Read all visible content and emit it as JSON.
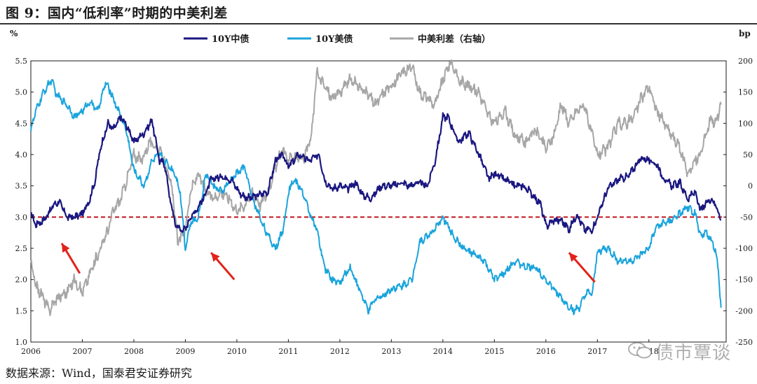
{
  "figure": {
    "title": "图 9：国内“低利率”时期的中美利差",
    "source": "数据来源：Wind，国泰君安证券研究",
    "watermark": "债市覃谈"
  },
  "chart_data": {
    "type": "line",
    "title": "",
    "left_axis": {
      "unit": "%",
      "ylim": [
        1.0,
        5.5
      ],
      "ticks": [
        "1.0",
        "1.5",
        "2.0",
        "2.5",
        "3.0",
        "3.5",
        "4.0",
        "4.5",
        "5.0",
        "5.5"
      ]
    },
    "right_axis": {
      "unit": "bp",
      "ylim": [
        -250,
        200
      ],
      "ticks": [
        "-250",
        "-200",
        "-150",
        "-100",
        "-50",
        "0",
        "50",
        "100",
        "150",
        "200"
      ]
    },
    "x_axis": {
      "xlim": [
        2006,
        2019.5
      ],
      "ticks": [
        "2006",
        "2007",
        "2008",
        "2009",
        "2010",
        "2011",
        "2012",
        "2013",
        "2014",
        "2015",
        "2016",
        "2017",
        "2018"
      ]
    },
    "grid": false,
    "legend_placement": "top-center",
    "reference_line": {
      "value": 3.0,
      "axis": "left",
      "color": "#c0141b",
      "style": "dashed"
    },
    "arrows": [
      {
        "from": [
          2006.95,
          2.1
        ],
        "to": [
          2006.6,
          2.58
        ],
        "color": "#e2231a"
      },
      {
        "from": [
          2009.95,
          2.0
        ],
        "to": [
          2009.5,
          2.43
        ],
        "color": "#e2231a"
      },
      {
        "from": [
          2016.95,
          1.96
        ],
        "to": [
          2016.45,
          2.43
        ],
        "color": "#e2231a"
      }
    ],
    "series": [
      {
        "name": "10Y中债",
        "axis": "left",
        "color": "#1a1780",
        "x": [
          2006.0,
          2006.1,
          2006.25,
          2006.45,
          2006.55,
          2006.7,
          2006.85,
          2007.0,
          2007.15,
          2007.25,
          2007.35,
          2007.5,
          2007.6,
          2007.75,
          2007.9,
          2008.0,
          2008.2,
          2008.35,
          2008.5,
          2008.6,
          2008.7,
          2008.8,
          2008.9,
          2009.0,
          2009.1,
          2009.2,
          2009.35,
          2009.5,
          2009.7,
          2009.9,
          2010.0,
          2010.1,
          2010.25,
          2010.4,
          2010.6,
          2010.75,
          2010.9,
          2011.0,
          2011.2,
          2011.4,
          2011.6,
          2011.7,
          2011.85,
          2012.0,
          2012.15,
          2012.3,
          2012.45,
          2012.6,
          2012.8,
          2013.0,
          2013.2,
          2013.35,
          2013.5,
          2013.7,
          2013.85,
          2014.0,
          2014.1,
          2014.3,
          2014.5,
          2014.7,
          2014.9,
          2015.0,
          2015.2,
          2015.4,
          2015.55,
          2015.7,
          2015.9,
          2016.0,
          2016.15,
          2016.3,
          2016.45,
          2016.6,
          2016.75,
          2016.9,
          2017.0,
          2017.2,
          2017.4,
          2017.6,
          2017.8,
          2017.9,
          2018.0,
          2018.15,
          2018.3,
          2018.45,
          2018.6,
          2018.75,
          2018.9,
          2019.0,
          2019.1,
          2019.2,
          2019.3,
          2019.4
        ],
        "values": [
          3.05,
          2.88,
          2.95,
          3.2,
          3.25,
          3.0,
          3.0,
          3.05,
          3.3,
          3.6,
          4.1,
          4.5,
          4.4,
          4.6,
          4.4,
          4.2,
          4.35,
          4.55,
          3.9,
          3.85,
          3.3,
          2.9,
          2.8,
          2.8,
          3.0,
          3.1,
          3.3,
          3.6,
          3.65,
          3.6,
          3.45,
          3.35,
          3.3,
          3.35,
          3.4,
          3.9,
          4.0,
          3.8,
          4.0,
          3.9,
          4.0,
          3.6,
          3.45,
          3.5,
          3.45,
          3.55,
          3.35,
          3.3,
          3.5,
          3.5,
          3.55,
          3.5,
          3.55,
          3.5,
          3.9,
          4.6,
          4.6,
          4.2,
          4.35,
          4.0,
          3.6,
          3.7,
          3.6,
          3.5,
          3.5,
          3.4,
          3.2,
          2.85,
          2.95,
          2.95,
          2.8,
          3.05,
          2.8,
          2.8,
          3.0,
          3.45,
          3.6,
          3.65,
          3.9,
          3.95,
          3.9,
          3.85,
          3.6,
          3.5,
          3.55,
          3.3,
          3.4,
          3.1,
          3.2,
          3.3,
          3.2,
          2.95
        ]
      },
      {
        "name": "10Y美债",
        "axis": "left",
        "color": "#1aa4dc",
        "x": [
          2006.0,
          2006.1,
          2006.25,
          2006.4,
          2006.5,
          2006.7,
          2006.85,
          2007.0,
          2007.15,
          2007.3,
          2007.45,
          2007.55,
          2007.7,
          2007.85,
          2008.0,
          2008.2,
          2008.35,
          2008.5,
          2008.65,
          2008.8,
          2008.9,
          2009.0,
          2009.1,
          2009.25,
          2009.4,
          2009.55,
          2009.7,
          2009.9,
          2010.0,
          2010.15,
          2010.3,
          2010.45,
          2010.6,
          2010.75,
          2010.9,
          2011.0,
          2011.1,
          2011.25,
          2011.4,
          2011.55,
          2011.7,
          2011.85,
          2012.0,
          2012.2,
          2012.4,
          2012.55,
          2012.7,
          2012.85,
          2013.0,
          2013.2,
          2013.4,
          2013.55,
          2013.7,
          2013.85,
          2014.0,
          2014.2,
          2014.4,
          2014.6,
          2014.8,
          2015.0,
          2015.2,
          2015.4,
          2015.6,
          2015.8,
          2016.0,
          2016.2,
          2016.4,
          2016.55,
          2016.65,
          2016.8,
          2016.9,
          2017.0,
          2017.2,
          2017.4,
          2017.55,
          2017.7,
          2017.85,
          2018.0,
          2018.15,
          2018.3,
          2018.45,
          2018.6,
          2018.75,
          2018.9,
          2019.0,
          2019.1,
          2019.2,
          2019.3,
          2019.35,
          2019.4
        ],
        "values": [
          4.4,
          4.7,
          5.0,
          5.2,
          4.95,
          4.8,
          4.6,
          4.7,
          4.85,
          4.7,
          5.15,
          5.0,
          4.7,
          4.4,
          3.75,
          3.5,
          3.9,
          4.0,
          3.85,
          3.7,
          3.4,
          2.5,
          2.9,
          3.0,
          3.7,
          3.5,
          3.4,
          3.6,
          3.7,
          3.8,
          3.3,
          3.0,
          2.7,
          2.5,
          2.8,
          3.4,
          3.6,
          3.45,
          3.1,
          2.8,
          2.2,
          2.0,
          1.95,
          2.2,
          1.8,
          1.5,
          1.7,
          1.75,
          1.85,
          1.9,
          2.0,
          2.6,
          2.7,
          2.8,
          3.0,
          2.7,
          2.5,
          2.4,
          2.3,
          2.0,
          2.1,
          2.3,
          2.2,
          2.2,
          2.0,
          1.8,
          1.6,
          1.5,
          1.55,
          1.8,
          1.75,
          2.45,
          2.5,
          2.3,
          2.3,
          2.3,
          2.4,
          2.5,
          2.85,
          2.9,
          2.95,
          3.05,
          3.15,
          3.05,
          2.7,
          2.75,
          2.65,
          2.45,
          2.1,
          1.55
        ]
      },
      {
        "name": "中美利差（右轴）",
        "axis": "right",
        "color": "#a6a6a6",
        "x": [
          2006.0,
          2006.1,
          2006.25,
          2006.35,
          2006.5,
          2006.7,
          2006.85,
          2007.0,
          2007.15,
          2007.35,
          2007.5,
          2007.6,
          2007.75,
          2007.9,
          2008.0,
          2008.15,
          2008.3,
          2008.45,
          2008.6,
          2008.75,
          2008.85,
          2009.0,
          2009.1,
          2009.25,
          2009.4,
          2009.55,
          2009.7,
          2009.85,
          2010.0,
          2010.15,
          2010.3,
          2010.45,
          2010.6,
          2010.75,
          2010.9,
          2011.0,
          2011.15,
          2011.3,
          2011.45,
          2011.55,
          2011.7,
          2011.85,
          2012.0,
          2012.2,
          2012.35,
          2012.5,
          2012.7,
          2012.85,
          2013.0,
          2013.2,
          2013.4,
          2013.55,
          2013.7,
          2013.85,
          2014.0,
          2014.15,
          2014.3,
          2014.5,
          2014.7,
          2014.9,
          2015.0,
          2015.2,
          2015.4,
          2015.6,
          2015.8,
          2016.0,
          2016.15,
          2016.3,
          2016.45,
          2016.6,
          2016.75,
          2016.9,
          2017.0,
          2017.2,
          2017.4,
          2017.55,
          2017.7,
          2017.85,
          2018.0,
          2018.15,
          2018.3,
          2018.45,
          2018.6,
          2018.75,
          2018.9,
          2019.0,
          2019.1,
          2019.2,
          2019.3,
          2019.4
        ],
        "values": [
          -125,
          -160,
          -180,
          -200,
          -180,
          -170,
          -150,
          -170,
          -140,
          -100,
          -70,
          -40,
          -20,
          20,
          50,
          40,
          70,
          60,
          40,
          -10,
          -90,
          -70,
          -10,
          20,
          -10,
          -20,
          -10,
          -20,
          -40,
          -30,
          -10,
          -30,
          -10,
          30,
          60,
          40,
          50,
          40,
          80,
          180,
          160,
          140,
          150,
          170,
          160,
          150,
          130,
          150,
          160,
          180,
          190,
          150,
          140,
          130,
          170,
          200,
          170,
          160,
          150,
          110,
          100,
          120,
          80,
          70,
          90,
          60,
          80,
          130,
          100,
          120,
          130,
          80,
          50,
          60,
          100,
          100,
          110,
          140,
          160,
          120,
          100,
          80,
          60,
          20,
          40,
          50,
          80,
          110,
          100,
          130
        ]
      }
    ]
  }
}
